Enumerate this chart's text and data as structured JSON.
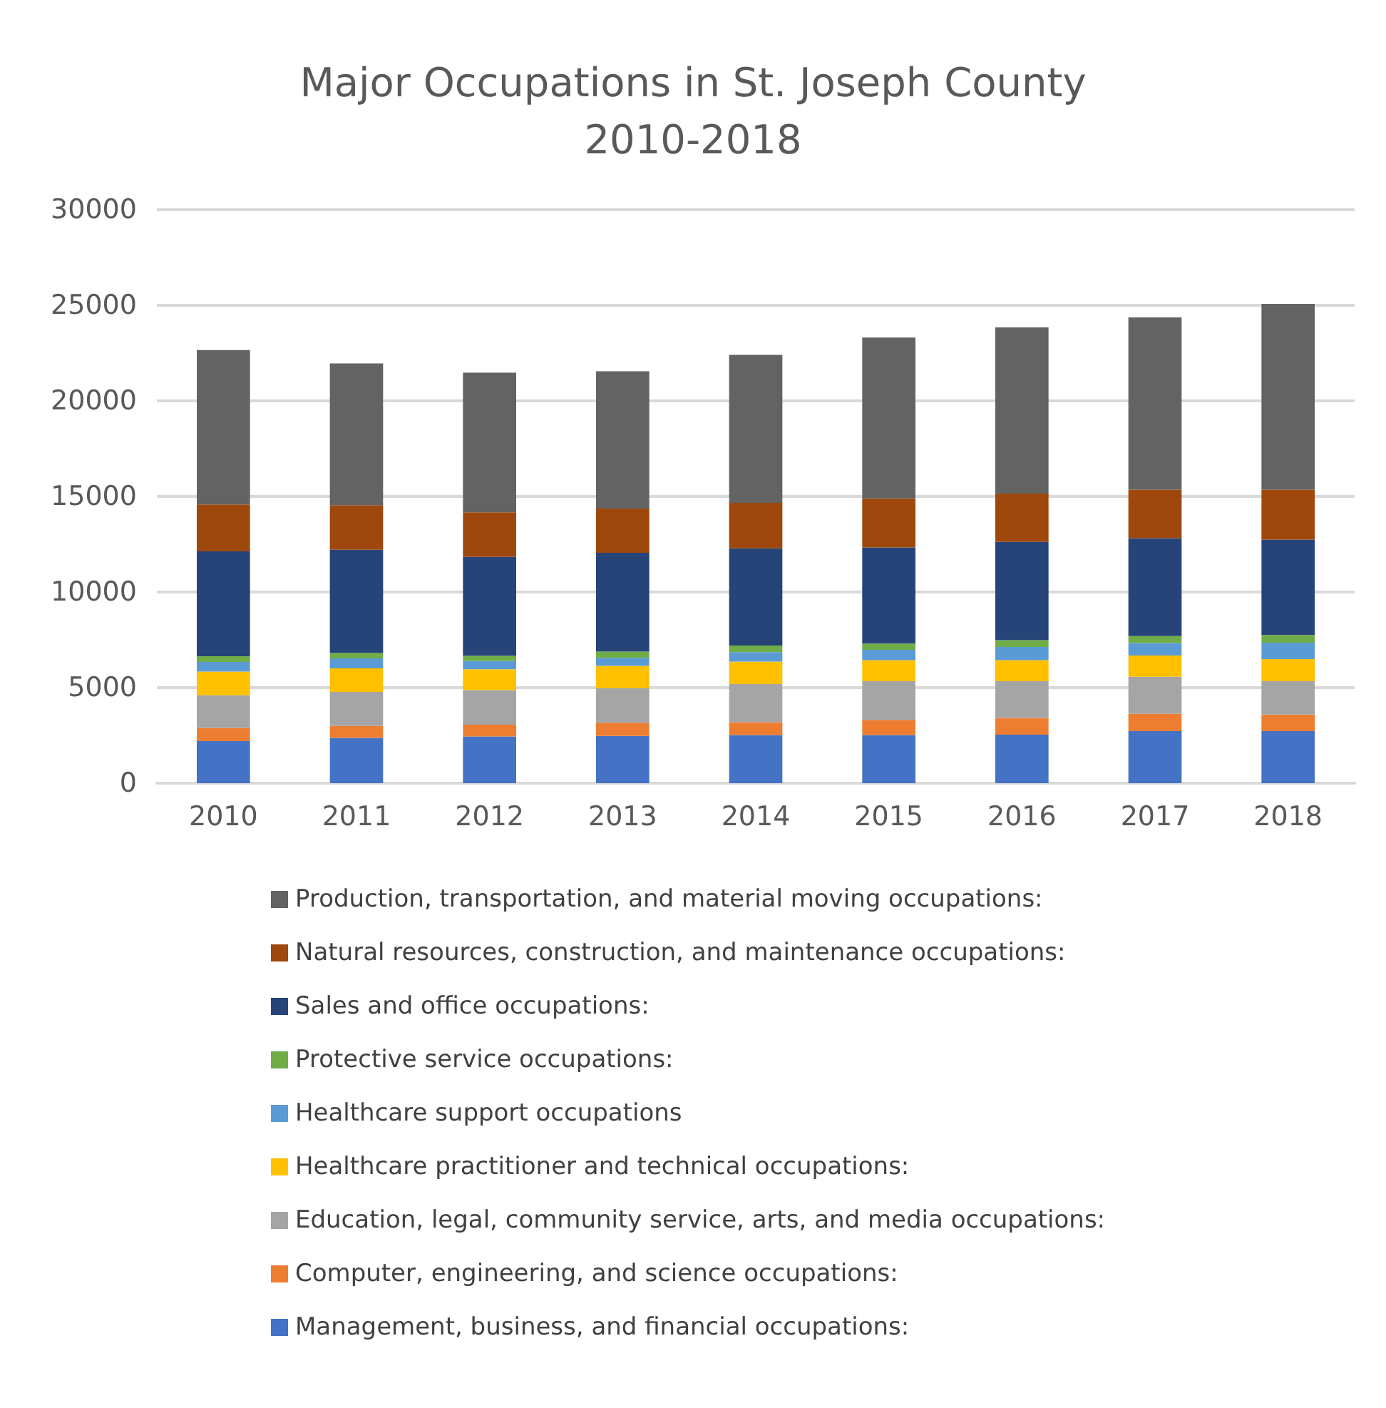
{
  "chart_data": {
    "type": "bar",
    "stacked": true,
    "title": "Major Occupations in St. Joseph County\n2010-2018",
    "categories": [
      "2010",
      "2011",
      "2012",
      "2013",
      "2014",
      "2015",
      "2016",
      "2017",
      "2018"
    ],
    "ylim": [
      0,
      30000
    ],
    "yticks": [
      0,
      5000,
      10000,
      15000,
      20000,
      25000,
      30000
    ],
    "grid": "y",
    "legend": "bottom",
    "series": [
      {
        "name": "Management, business, and financial occupations:",
        "color": "#4472c4",
        "values": [
          2200,
          2370,
          2440,
          2470,
          2520,
          2520,
          2540,
          2720,
          2720
        ]
      },
      {
        "name": "Computer, engineering, and science occupations:",
        "color": "#ed7d31",
        "values": [
          690,
          620,
          620,
          690,
          670,
          790,
          870,
          910,
          870
        ]
      },
      {
        "name": "Education, legal, community service, arts, and media occupations:",
        "color": "#a5a5a5",
        "values": [
          1710,
          1790,
          1810,
          1810,
          2000,
          2030,
          1930,
          1940,
          1750
        ]
      },
      {
        "name": "Healthcare practitioner and technical occupations:",
        "color": "#ffc000",
        "values": [
          1240,
          1230,
          1090,
          1170,
          1170,
          1100,
          1100,
          1110,
          1150
        ]
      },
      {
        "name": "Healthcare support occupations",
        "color": "#5b9bd5",
        "values": [
          500,
          520,
          430,
          420,
          500,
          540,
          690,
          650,
          860
        ]
      },
      {
        "name": "Protective service occupations:",
        "color": "#70ad47",
        "values": [
          300,
          280,
          270,
          320,
          340,
          320,
          350,
          370,
          400
        ]
      },
      {
        "name": "Sales and office occupations:",
        "color": "#264478",
        "values": [
          5490,
          5400,
          5180,
          5170,
          5090,
          5030,
          5140,
          5120,
          4990
        ]
      },
      {
        "name": "Natural resources, construction, and maintenance occupations:",
        "color": "#9e480e",
        "values": [
          2450,
          2330,
          2330,
          2320,
          2370,
          2570,
          2530,
          2530,
          2610
        ]
      },
      {
        "name": "Production, transportation, and material moving occupations:",
        "color": "#636363",
        "values": [
          8080,
          7420,
          7300,
          7180,
          7750,
          8410,
          8690,
          9020,
          9720
        ]
      }
    ]
  }
}
